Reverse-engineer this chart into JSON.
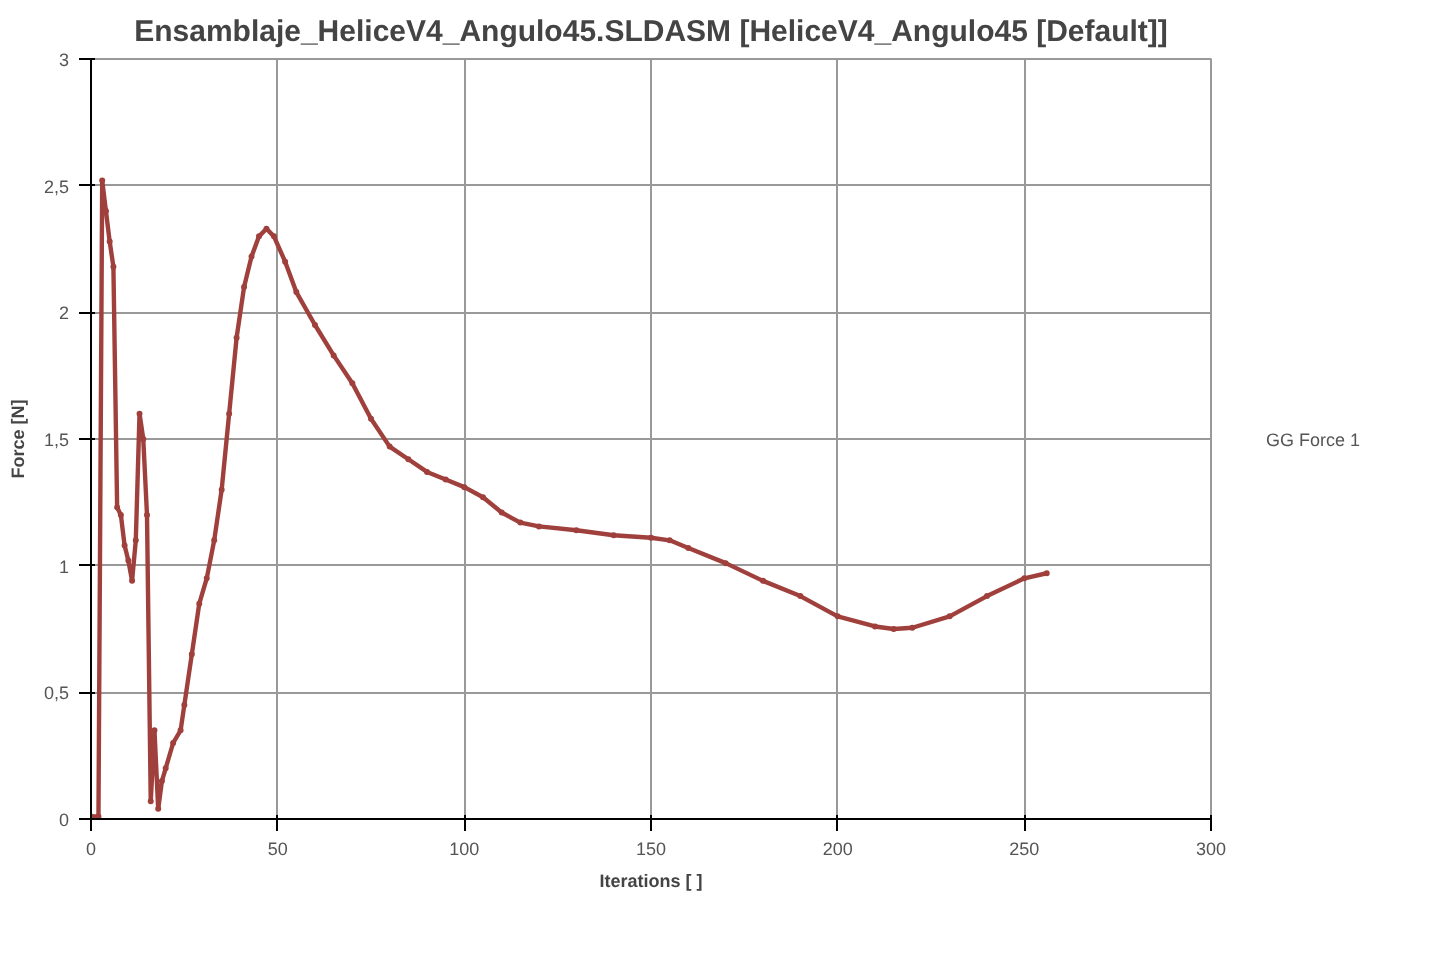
{
  "chart_data": {
    "type": "line",
    "title": "Ensamblaje_HeliceV4_Angulo45.SLDASM [HeliceV4_Angulo45 [Default]]",
    "xlabel": "Iterations [ ]",
    "ylabel": "Force [N]",
    "xlim": [
      0,
      300
    ],
    "xticks": [
      0,
      50,
      100,
      150,
      200,
      250,
      300
    ],
    "ylim": [
      0,
      3
    ],
    "yticks": [
      0,
      {
        "value": 0.5,
        "label": "0,5"
      },
      1,
      {
        "value": 1.5,
        "label": "1,5"
      },
      2,
      {
        "value": 2.5,
        "label": "2,5"
      },
      3
    ],
    "grid": true,
    "legend": "right",
    "marker": "circle",
    "line_style": "solid",
    "series": [
      {
        "name": "GG Force 1",
        "color": "#a0403c",
        "x": [
          0,
          2,
          3,
          4,
          5,
          6,
          7,
          8,
          9,
          10,
          11,
          12,
          13,
          14,
          15,
          16,
          17,
          18,
          19,
          20,
          22,
          24,
          25,
          27,
          29,
          31,
          33,
          35,
          37,
          39,
          41,
          43,
          45,
          47,
          49,
          52,
          55,
          60,
          65,
          70,
          75,
          80,
          85,
          90,
          95,
          100,
          105,
          110,
          115,
          120,
          130,
          140,
          150,
          155,
          160,
          170,
          180,
          190,
          200,
          210,
          215,
          220,
          230,
          240,
          250,
          256
        ],
        "values": [
          0.01,
          0.01,
          2.52,
          2.4,
          2.28,
          2.18,
          1.23,
          1.2,
          1.08,
          1.02,
          0.94,
          1.1,
          1.6,
          1.5,
          1.2,
          0.07,
          0.35,
          0.04,
          0.15,
          0.2,
          0.3,
          0.35,
          0.45,
          0.65,
          0.85,
          0.95,
          1.1,
          1.3,
          1.6,
          1.9,
          2.1,
          2.22,
          2.3,
          2.33,
          2.3,
          2.2,
          2.08,
          1.95,
          1.83,
          1.72,
          1.58,
          1.47,
          1.42,
          1.37,
          1.34,
          1.31,
          1.27,
          1.21,
          1.17,
          1.155,
          1.14,
          1.12,
          1.11,
          1.1,
          1.07,
          1.01,
          0.94,
          0.88,
          0.8,
          0.76,
          0.75,
          0.755,
          0.8,
          0.88,
          0.95,
          0.97
        ]
      }
    ]
  }
}
